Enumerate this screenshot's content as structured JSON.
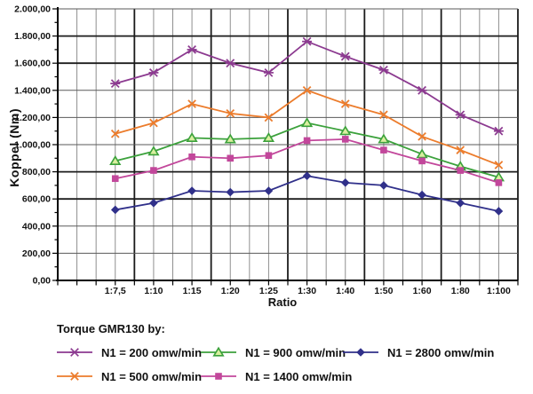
{
  "chart_data": {
    "type": "line",
    "legend_title": "Torque GMR130 by:",
    "xlabel": "Ratio",
    "ylabel": "Koppel (Nm)",
    "ylim": [
      0,
      2000
    ],
    "ytick_step": 200,
    "ytick_labels": [
      "0,00",
      "200,00",
      "400,00",
      "600,00",
      "800,00",
      "1.000,00",
      "1.200,00",
      "1.400,00",
      "1.600,00",
      "1.800,00",
      "2.000,00"
    ],
    "categories": [
      "1:7,5",
      "1:10",
      "1:15",
      "1:20",
      "1:25",
      "1:30",
      "1:40",
      "1:50",
      "1:60",
      "1:80",
      "1:100"
    ],
    "grid": true,
    "legend_position": "bottom",
    "series": [
      {
        "name": "N1 = 200 omw/min",
        "color": "#8C3A90",
        "marker": "star",
        "values": [
          1450,
          1530,
          1700,
          1600,
          1530,
          1760,
          1650,
          1550,
          1400,
          1220,
          1100
        ]
      },
      {
        "name": "N1 = 500 omw/min",
        "color": "#EC7C2C",
        "marker": "x",
        "values": [
          1080,
          1160,
          1300,
          1230,
          1200,
          1400,
          1300,
          1220,
          1060,
          960,
          850
        ]
      },
      {
        "name": "N1 = 900 omw/min",
        "color": "#3BA13B",
        "marker": "triangle",
        "marker_fill": "#D9EF9F",
        "values": [
          880,
          950,
          1050,
          1040,
          1050,
          1160,
          1100,
          1040,
          930,
          840,
          760
        ]
      },
      {
        "name": "N1 = 1400 omw/min",
        "color": "#C2479B",
        "marker": "square",
        "values": [
          750,
          810,
          910,
          900,
          920,
          1030,
          1040,
          960,
          880,
          810,
          720
        ]
      },
      {
        "name": "N1 = 2800 omw/min",
        "color": "#30308A",
        "marker": "diamond",
        "values": [
          520,
          570,
          660,
          650,
          660,
          770,
          720,
          700,
          630,
          570,
          510
        ]
      }
    ]
  }
}
